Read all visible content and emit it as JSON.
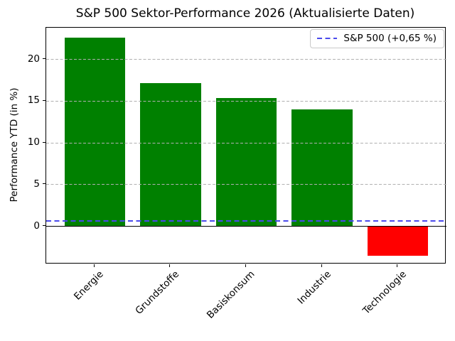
{
  "title": "S&P 500 Sektor-Performance 2026 (Aktualisierte Daten)",
  "chart_data": {
    "type": "bar",
    "title": "S&P 500 Sektor-Performance 2026 (Aktualisierte Daten)",
    "xlabel": "",
    "ylabel": "Performance YTD (in %)",
    "categories": [
      "Energie",
      "Grundstoffe",
      "Basiskonsum",
      "Industrie",
      "Technologie"
    ],
    "values": [
      22.6,
      17.2,
      15.4,
      14.0,
      -3.5
    ],
    "bar_colors": [
      "#008000",
      "#008000",
      "#008000",
      "#008000",
      "#ff0000"
    ],
    "positive_color": "#008000",
    "negative_color": "#ff0000",
    "bar_width_fraction": 0.8,
    "yticks": [
      0,
      5,
      10,
      15,
      20
    ],
    "ylim": [
      -4.55,
      23.8
    ],
    "grid": true,
    "grid_axis": "y",
    "grid_style": "dashed",
    "gridline_color": "#b0b0b0",
    "grid_above_bars": true,
    "zero_line_color": "#000000",
    "reference_line": {
      "value": 0.65,
      "label": "S&P 500 (+0,65 %)",
      "color": "#4a4aec",
      "style": "dashed"
    },
    "legend_position": "upper right"
  }
}
